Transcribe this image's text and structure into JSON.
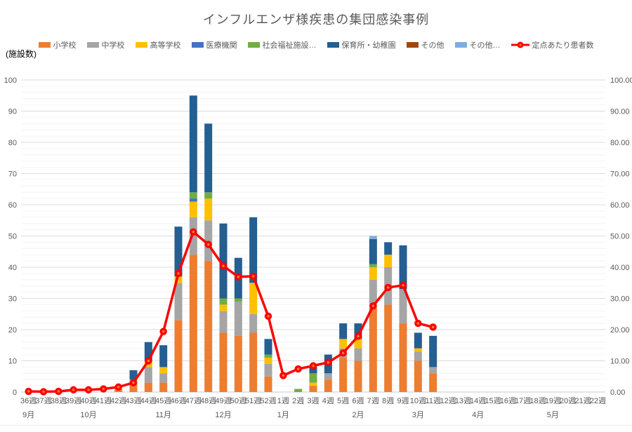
{
  "title": "インフルエンザ様疾患の集団感染事例",
  "axis_note_left": "(施設数)",
  "chart_data": {
    "type": "bar",
    "subtype": "stacked-bar-with-line-combo",
    "title": "インフルエンザ様疾患の集団感染事例",
    "ylabel_left": "(施設数)",
    "grid": {
      "major_color": "#DCDCDC",
      "minor_color": "#F4F4F4",
      "axis_line_color": "#C8C8C8",
      "minor_step": 2,
      "major_step": 10,
      "grid_on": true
    },
    "left_axis": {
      "min": 0,
      "max": 100,
      "step": 10,
      "ticks": [
        "0",
        "10",
        "20",
        "30",
        "40",
        "50",
        "60",
        "70",
        "80",
        "90",
        "100"
      ]
    },
    "right_axis": {
      "min": 0,
      "max": 100,
      "step": 10,
      "ticks": [
        "0.00",
        "10.00",
        "20.00",
        "30.00",
        "40.00",
        "50.00",
        "60.00",
        "70.00",
        "80.00",
        "90.00",
        "100.00"
      ]
    },
    "legend_position": "top",
    "categories": [
      "36週",
      "37週",
      "38週",
      "39週",
      "40週",
      "41週",
      "42週",
      "43週",
      "44週",
      "45週",
      "46週",
      "47週",
      "48週",
      "49週",
      "50週",
      "51週",
      "52週",
      "1週",
      "2週",
      "3週",
      "4週",
      "5週",
      "6週",
      "7週",
      "8週",
      "9週",
      "10週",
      "11週",
      "12週",
      "13週",
      "14週",
      "15週",
      "16週",
      "17週",
      "18週",
      "19週",
      "20週",
      "21週",
      "22週"
    ],
    "month_groups": [
      {
        "label": "9月",
        "start": 0,
        "count": 4
      },
      {
        "label": "10月",
        "start": 4,
        "count": 5
      },
      {
        "label": "11月",
        "start": 9,
        "count": 4
      },
      {
        "label": "12月",
        "start": 13,
        "count": 4
      },
      {
        "label": "1月",
        "start": 17,
        "count": 5
      },
      {
        "label": "2月",
        "start": 22,
        "count": 4
      },
      {
        "label": "3月",
        "start": 26,
        "count": 4
      },
      {
        "label": "4月",
        "start": 30,
        "count": 5
      },
      {
        "label": "5月",
        "start": 35,
        "count": 4
      }
    ],
    "series": [
      {
        "name": "小学校",
        "color": "#ED7D31",
        "values": [
          0,
          0,
          0,
          0,
          0,
          0,
          1,
          3,
          3,
          3,
          23,
          44,
          42,
          19,
          18,
          19,
          5,
          0,
          0,
          2,
          4,
          11,
          10,
          27,
          28,
          22,
          10,
          6,
          0,
          0,
          0,
          0,
          0,
          0,
          0,
          0,
          0,
          0,
          0
        ]
      },
      {
        "name": "中学校",
        "color": "#A5A5A5",
        "values": [
          0,
          0,
          0,
          0,
          0,
          0,
          0,
          1,
          5,
          3,
          12,
          12,
          13,
          7,
          11,
          6,
          4,
          0,
          0,
          0,
          2,
          3,
          4,
          9,
          12,
          11,
          3,
          2,
          0,
          0,
          0,
          0,
          0,
          0,
          0,
          0,
          0,
          0,
          0
        ]
      },
      {
        "name": "高等学校",
        "color": "#FFC000",
        "values": [
          0,
          0,
          0,
          0,
          0,
          0,
          0,
          0,
          2,
          2,
          2,
          5,
          7,
          2,
          0,
          10,
          2,
          0,
          0,
          1,
          0,
          3,
          3,
          4,
          4,
          0,
          1,
          0,
          0,
          0,
          0,
          0,
          0,
          0,
          0,
          0,
          0,
          0,
          0
        ]
      },
      {
        "name": "医療機関",
        "color": "#4472C4",
        "values": [
          0,
          0,
          0,
          0,
          0,
          0,
          0,
          0,
          0,
          0,
          0,
          1,
          0,
          0,
          0,
          0,
          0,
          0,
          0,
          0,
          0,
          0,
          0,
          0,
          0,
          0,
          0,
          0,
          0,
          0,
          0,
          0,
          0,
          0,
          0,
          0,
          0,
          0,
          0
        ]
      },
      {
        "name": "社会福祉施設…",
        "color": "#70AD47",
        "values": [
          0,
          0,
          0,
          0,
          0,
          0,
          0,
          0,
          0,
          0,
          0,
          2,
          2,
          2,
          1,
          0,
          1,
          0,
          1,
          3,
          0,
          0,
          0,
          1,
          0,
          0,
          0,
          0,
          0,
          0,
          0,
          0,
          0,
          0,
          0,
          0,
          0,
          0,
          0
        ]
      },
      {
        "name": "保育所・幼稚園",
        "color": "#255E91",
        "values": [
          0,
          0,
          0,
          0,
          0,
          0,
          0,
          3,
          6,
          7,
          16,
          31,
          22,
          24,
          13,
          21,
          5,
          0,
          0,
          2,
          6,
          5,
          5,
          8,
          4,
          14,
          5,
          10,
          0,
          0,
          0,
          0,
          0,
          0,
          0,
          0,
          0,
          0,
          0
        ]
      },
      {
        "name": "その他",
        "color": "#9E480E",
        "values": [
          0,
          0,
          0,
          0,
          0,
          0,
          0,
          0,
          0,
          0,
          0,
          0,
          0,
          0,
          0,
          0,
          0,
          0,
          0,
          0,
          0,
          0,
          0,
          0,
          0,
          0,
          0,
          0,
          0,
          0,
          0,
          0,
          0,
          0,
          0,
          0,
          0,
          0,
          0
        ]
      },
      {
        "name": "その他…",
        "color": "#7CAFDD",
        "values": [
          0,
          0,
          0,
          0,
          0,
          0,
          0,
          0,
          0,
          0,
          0,
          0,
          0,
          0,
          0,
          0,
          0,
          0,
          0,
          0,
          0,
          0,
          0,
          1,
          0,
          0,
          0,
          0,
          0,
          0,
          0,
          0,
          0,
          0,
          0,
          0,
          0,
          0,
          0
        ]
      }
    ],
    "line_series": {
      "name": "定点あたり患者数",
      "color": "#FF0000",
      "marker_center_color": "#ED7D31",
      "axis": "right",
      "values": [
        0.2,
        0.1,
        0.2,
        0.7,
        0.7,
        1.0,
        1.6,
        3.0,
        10.0,
        19.4,
        38.0,
        51.3,
        47.3,
        40.4,
        36.9,
        37.1,
        24.3,
        5.3,
        7.4,
        8.4,
        9.5,
        12.5,
        17.9,
        27.6,
        33.5,
        34.2,
        22.0,
        20.8,
        null,
        null,
        null,
        null,
        null,
        null,
        null,
        null,
        null,
        null,
        null
      ]
    }
  }
}
